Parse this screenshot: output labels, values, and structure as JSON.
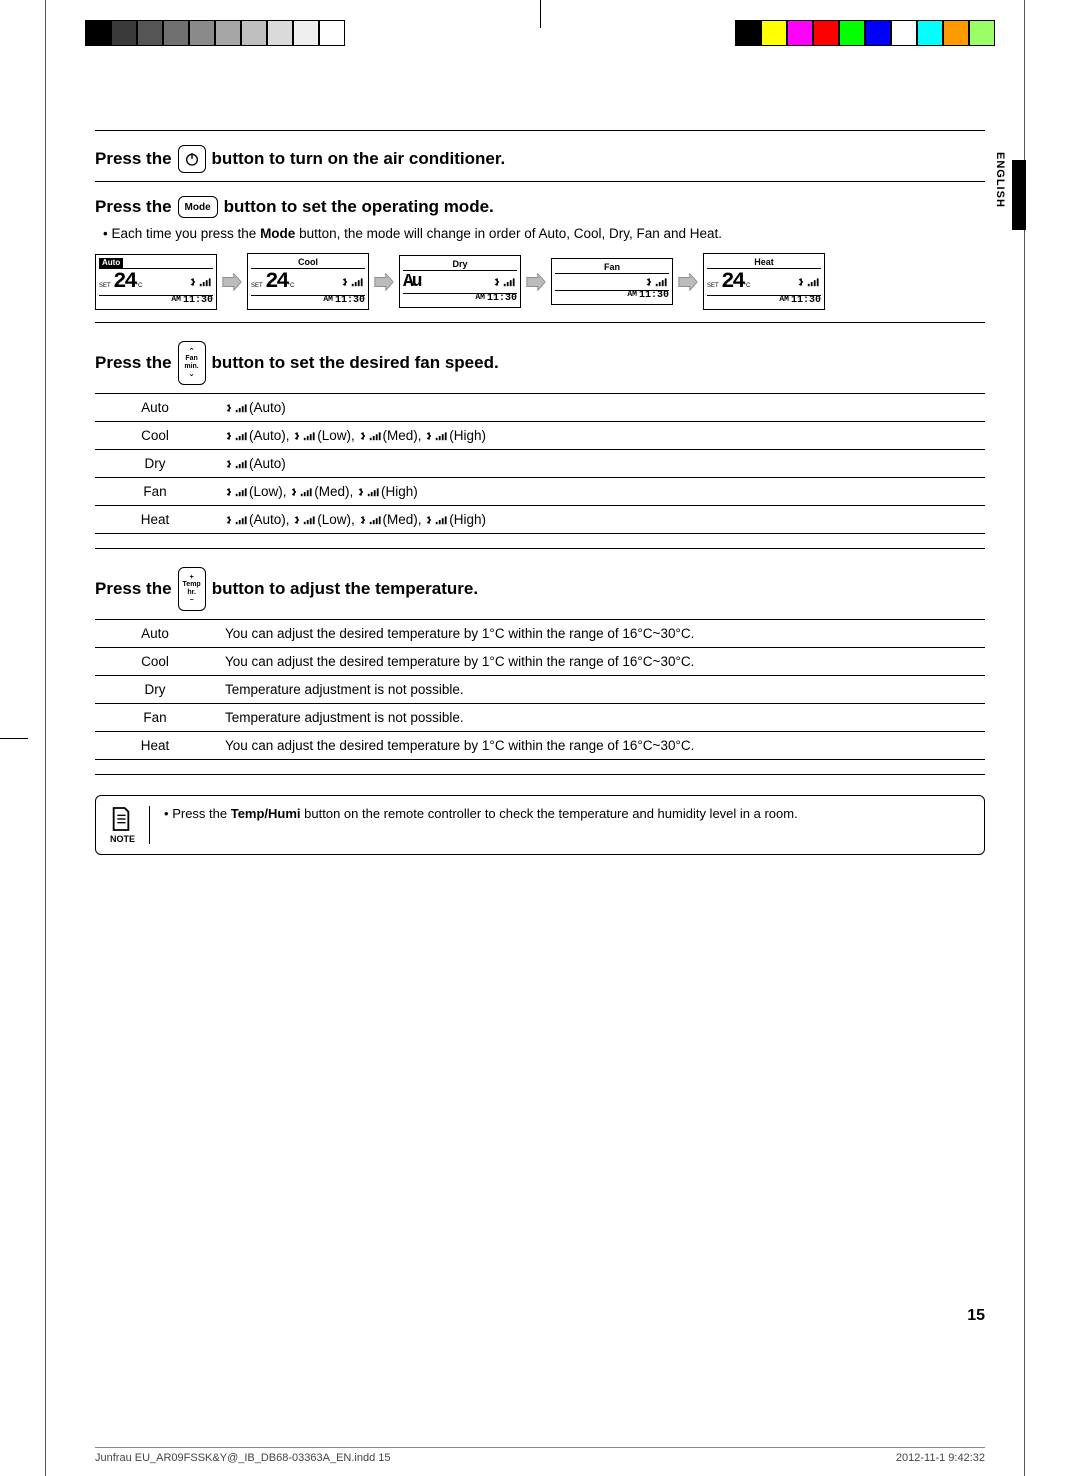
{
  "colorbars_left": [
    "#000000",
    "#3a3a3a",
    "#555555",
    "#707070",
    "#8a8a8a",
    "#a5a5a5",
    "#bfbfbf",
    "#dadada",
    "#efefef",
    "#ffffff"
  ],
  "colorbars_right": [
    "#000000",
    "#ffff00",
    "#ff00ff",
    "#ff0000",
    "#00ff00",
    "#0000ff",
    "#ffffff",
    "#00ffff",
    "#ff9900",
    "#99ff66"
  ],
  "lang": "ENGLISH",
  "section1": {
    "prefix": "Press the",
    "suffix": "button to turn on the air conditioner."
  },
  "section2": {
    "prefix": "Press the",
    "btn": "Mode",
    "suffix": "button to set the operating mode.",
    "bullet_a": "Each time you press the ",
    "bullet_bold": "Mode",
    "bullet_b": " button, the mode will change in order of Auto, Cool, Dry, Fan and Heat."
  },
  "modes": {
    "labels": [
      "Auto",
      "Cool",
      "Dry",
      "Fan",
      "Heat"
    ],
    "temp": "24",
    "tempC": "°C",
    "set": "SET",
    "time_pre": "AM",
    "time": "11:30",
    "dry_glyph": "Au"
  },
  "section3": {
    "prefix": "Press the",
    "btn_top": "⌃",
    "btn_mid1": "Fan",
    "btn_mid2": "min.",
    "btn_bot": "⌄",
    "suffix": "button to set the desired fan speed."
  },
  "fan_table": {
    "rows": [
      {
        "mode": "Auto",
        "desc": " (Auto)"
      },
      {
        "mode": "Cool",
        "desc": " (Auto),  (Low),  (Med),  (High)"
      },
      {
        "mode": "Dry",
        "desc": " (Auto)"
      },
      {
        "mode": "Fan",
        "desc": " (Low),  (Med),  (High)"
      },
      {
        "mode": "Heat",
        "desc": " (Auto),  (Low),  (Med),  (High)"
      }
    ]
  },
  "section4": {
    "prefix": "Press the",
    "btn_top": "+",
    "btn_mid1": "Temp",
    "btn_mid2": "hr.",
    "btn_bot": "−",
    "suffix": "button to adjust the temperature."
  },
  "temp_table": {
    "rows": [
      {
        "mode": "Auto",
        "desc": "You can adjust the desired temperature by 1°C within the range of 16°C~30°C."
      },
      {
        "mode": "Cool",
        "desc": "You can adjust the desired temperature by 1°C within the range of 16°C~30°C."
      },
      {
        "mode": "Dry",
        "desc": "Temperature adjustment is not possible."
      },
      {
        "mode": "Fan",
        "desc": "Temperature adjustment is not possible."
      },
      {
        "mode": "Heat",
        "desc": "You can adjust the desired temperature by 1°C within the range of 16°C~30°C."
      }
    ]
  },
  "note": {
    "label": "NOTE",
    "pre": "Press the ",
    "bold": "Temp/Humi",
    "post": " button on the remote controller to check the temperature and humidity level in a room."
  },
  "page_num": "15",
  "footer_left": "Junfrau EU_AR09FSSK&Y@_IB_DB68-03363A_EN.indd   15",
  "footer_right": "2012-11-1   9:42:32"
}
